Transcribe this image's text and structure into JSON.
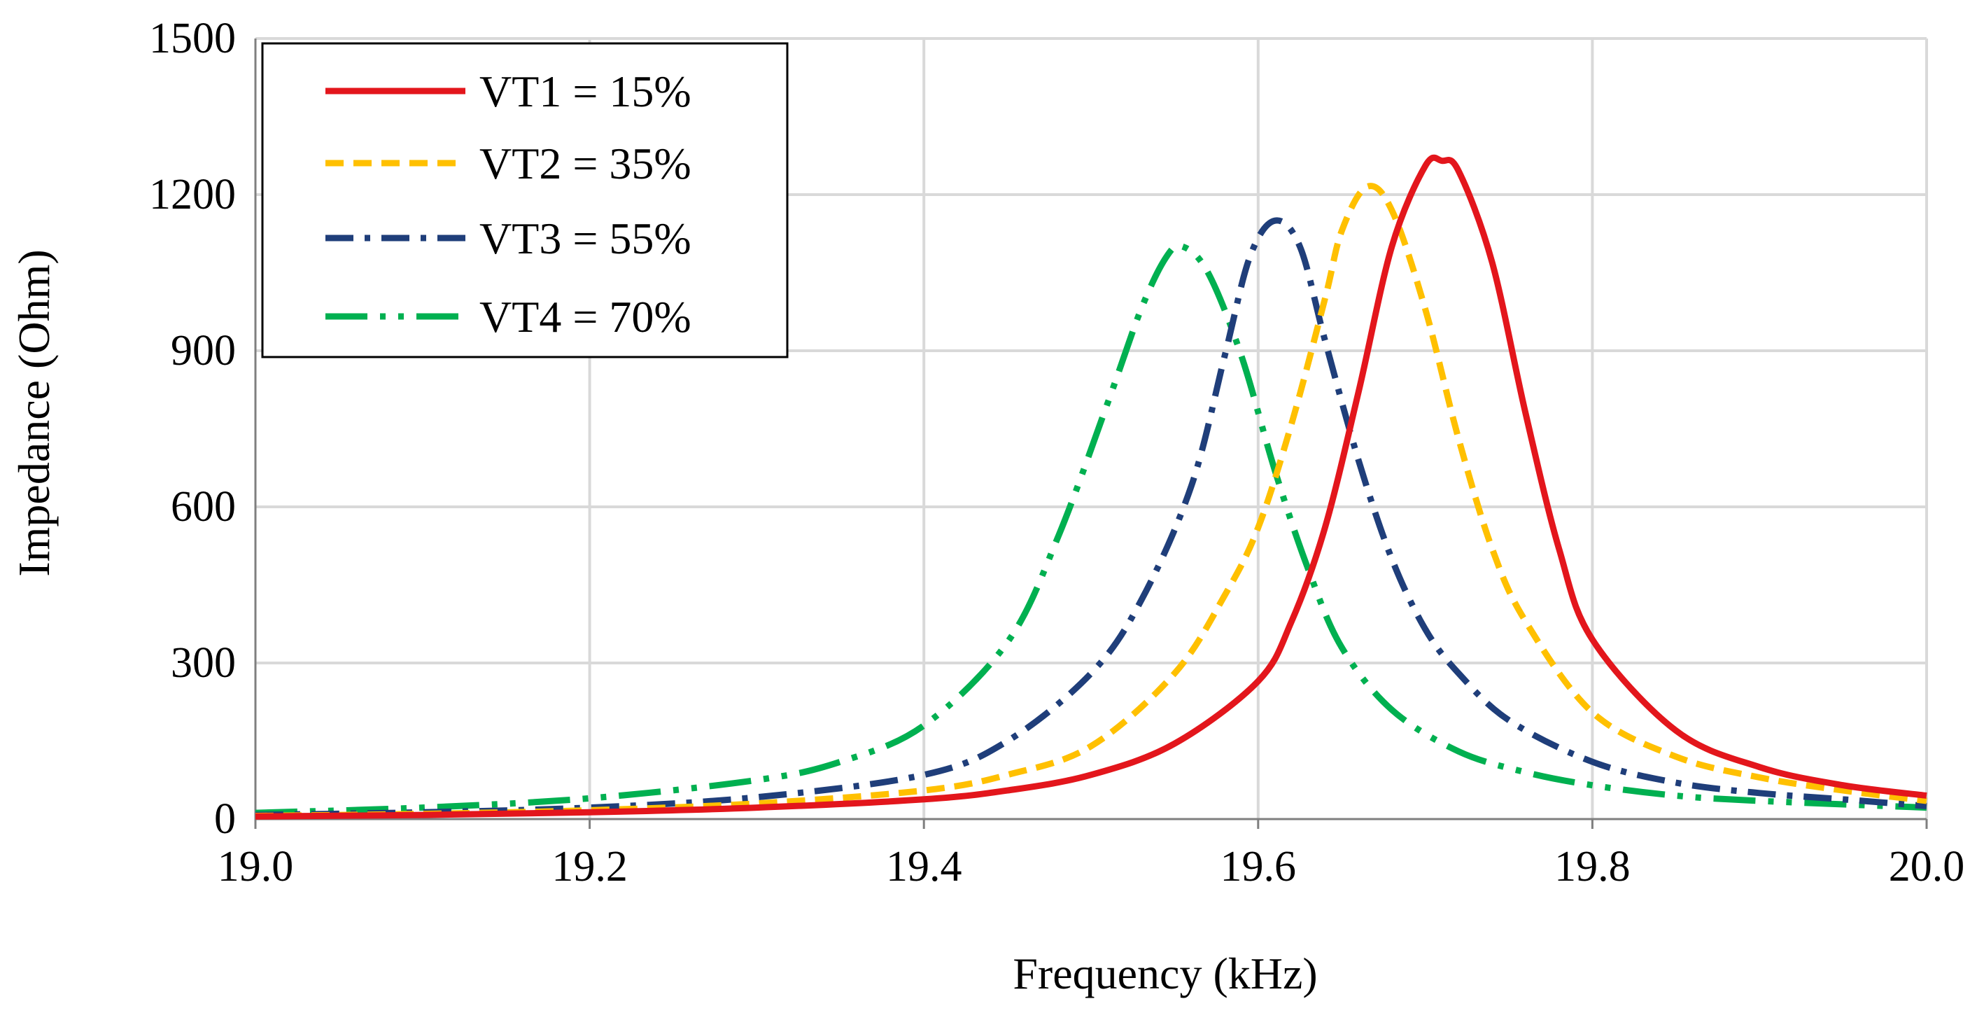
{
  "chart_data": {
    "type": "line",
    "title": "",
    "xlabel": "Frequency (kHz)",
    "ylabel": "Impedance (Ohm)",
    "xlim": [
      19.0,
      20.0
    ],
    "ylim": [
      0,
      1500
    ],
    "grid": true,
    "legend_position": "top-left",
    "x_ticks": [
      "19.0",
      "19.2",
      "19.4",
      "19.6",
      "19.8",
      "20.0"
    ],
    "y_ticks": [
      "0",
      "300",
      "600",
      "900",
      "1200",
      "1500"
    ],
    "series": [
      {
        "name": "VT1 = 15%",
        "color": "#e3161c",
        "style": "solid",
        "x": [
          19.0,
          19.1,
          19.2,
          19.3,
          19.4,
          19.45,
          19.5,
          19.55,
          19.6,
          19.62,
          19.64,
          19.66,
          19.68,
          19.7,
          19.71,
          19.72,
          19.74,
          19.76,
          19.78,
          19.8,
          19.85,
          19.9,
          19.95,
          20.0
        ],
        "values": [
          5,
          8,
          13,
          22,
          38,
          55,
          85,
          145,
          265,
          380,
          560,
          820,
          1100,
          1255,
          1265,
          1245,
          1070,
          780,
          520,
          345,
          170,
          100,
          65,
          45
        ]
      },
      {
        "name": "VT2 = 35%",
        "color": "#ffc000",
        "style": "dashed",
        "x": [
          19.0,
          19.1,
          19.2,
          19.3,
          19.4,
          19.45,
          19.5,
          19.55,
          19.58,
          19.6,
          19.62,
          19.64,
          19.65,
          19.665,
          19.68,
          19.7,
          19.72,
          19.74,
          19.76,
          19.8,
          19.85,
          19.9,
          19.95,
          20.0
        ],
        "values": [
          6,
          10,
          17,
          30,
          55,
          85,
          140,
          280,
          430,
          560,
          760,
          1000,
          1130,
          1215,
          1170,
          980,
          730,
          520,
          380,
          205,
          120,
          80,
          55,
          35
        ]
      },
      {
        "name": "VT3 = 55%",
        "color": "#1f3e7a",
        "style": "dashdot",
        "x": [
          19.0,
          19.1,
          19.2,
          19.3,
          19.4,
          19.45,
          19.5,
          19.53,
          19.56,
          19.58,
          19.595,
          19.61,
          19.625,
          19.64,
          19.66,
          19.68,
          19.7,
          19.72,
          19.75,
          19.8,
          19.85,
          19.9,
          19.95,
          20.0
        ],
        "values": [
          8,
          13,
          22,
          42,
          85,
          150,
          280,
          420,
          640,
          890,
          1080,
          1150,
          1100,
          920,
          690,
          500,
          365,
          280,
          190,
          110,
          70,
          50,
          38,
          25
        ]
      },
      {
        "name": "VT4 = 70%",
        "color": "#00b050",
        "style": "dashdotdot",
        "x": [
          19.0,
          19.1,
          19.2,
          19.3,
          19.35,
          19.4,
          19.45,
          19.48,
          19.51,
          19.53,
          19.545,
          19.555,
          19.57,
          19.59,
          19.61,
          19.63,
          19.65,
          19.68,
          19.72,
          19.76,
          19.8,
          19.85,
          19.9,
          20.0
        ],
        "values": [
          12,
          22,
          40,
          75,
          110,
          180,
          340,
          540,
          800,
          980,
          1080,
          1100,
          1050,
          890,
          670,
          480,
          330,
          210,
          130,
          90,
          65,
          45,
          35,
          22
        ]
      }
    ]
  },
  "colors": {
    "gridline": "#d9d9d9",
    "axis": "#7f7f7f",
    "legend_border": "#000000"
  }
}
